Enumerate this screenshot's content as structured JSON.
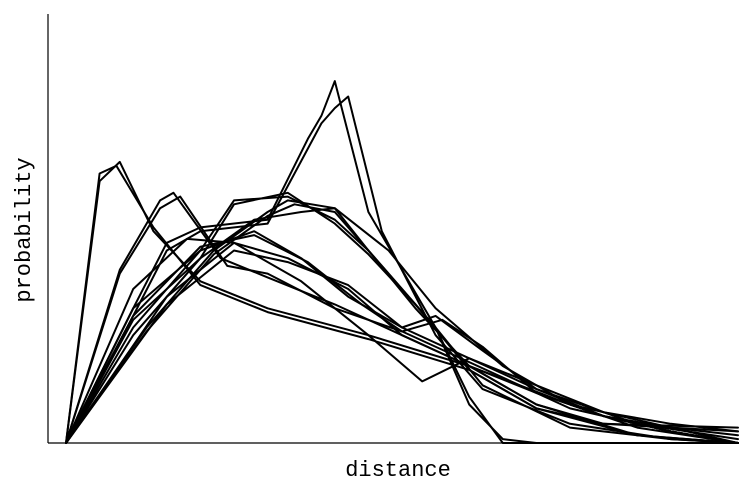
{
  "chart_data": {
    "type": "line",
    "title": "",
    "xlabel": "distance",
    "ylabel": "probability",
    "xlim": [
      0,
      1
    ],
    "ylim": [
      0,
      1
    ],
    "x_ticks_labeled": false,
    "y_ticks_labeled": false,
    "grid": false,
    "legend": "none",
    "line_color": "#000000",
    "series": [
      {
        "x": [
          0,
          0.05,
          0.08,
          0.13,
          0.2,
          0.3,
          0.45,
          0.6,
          0.7,
          0.85,
          1.0
        ],
        "values": [
          0,
          0.68,
          0.73,
          0.55,
          0.42,
          0.35,
          0.28,
          0.2,
          0.1,
          0.02,
          0
        ]
      },
      {
        "x": [
          0,
          0.05,
          0.075,
          0.13,
          0.2,
          0.3,
          0.45,
          0.6,
          0.7,
          0.85,
          1.0
        ],
        "values": [
          0,
          0.7,
          0.72,
          0.56,
          0.41,
          0.34,
          0.27,
          0.19,
          0.09,
          0.02,
          0
        ]
      },
      {
        "x": [
          0,
          0.08,
          0.14,
          0.16,
          0.23,
          0.3,
          0.4,
          0.5,
          0.6,
          0.75,
          0.9,
          1.0
        ],
        "values": [
          0,
          0.45,
          0.63,
          0.65,
          0.48,
          0.43,
          0.36,
          0.28,
          0.2,
          0.1,
          0.04,
          0
        ]
      },
      {
        "x": [
          0,
          0.08,
          0.14,
          0.17,
          0.24,
          0.3,
          0.4,
          0.5,
          0.6,
          0.75,
          0.9,
          1.0
        ],
        "values": [
          0,
          0.44,
          0.61,
          0.64,
          0.46,
          0.44,
          0.35,
          0.29,
          0.21,
          0.09,
          0.03,
          0
        ]
      },
      {
        "x": [
          0,
          0.1,
          0.15,
          0.2,
          0.3,
          0.36,
          0.38,
          0.4,
          0.45,
          0.55,
          0.62,
          0.75,
          0.9,
          1.0
        ],
        "values": [
          0,
          0.35,
          0.52,
          0.56,
          0.58,
          0.79,
          0.85,
          0.94,
          0.6,
          0.3,
          0.15,
          0.04,
          0.01,
          0
        ]
      },
      {
        "x": [
          0,
          0.1,
          0.15,
          0.2,
          0.3,
          0.38,
          0.4,
          0.42,
          0.47,
          0.55,
          0.62,
          0.75,
          0.9,
          1.0
        ],
        "values": [
          0,
          0.33,
          0.5,
          0.55,
          0.57,
          0.83,
          0.87,
          0.9,
          0.55,
          0.28,
          0.14,
          0.05,
          0.01,
          0
        ]
      },
      {
        "x": [
          0,
          0.1,
          0.2,
          0.25,
          0.33,
          0.4,
          0.45,
          0.52,
          0.6,
          0.7,
          0.8,
          1.0
        ],
        "values": [
          0,
          0.3,
          0.5,
          0.63,
          0.64,
          0.58,
          0.5,
          0.35,
          0.2,
          0.1,
          0.05,
          0.04
        ]
      },
      {
        "x": [
          0,
          0.1,
          0.2,
          0.25,
          0.33,
          0.4,
          0.45,
          0.52,
          0.6,
          0.7,
          0.8,
          1.0
        ],
        "values": [
          0,
          0.28,
          0.48,
          0.62,
          0.65,
          0.57,
          0.49,
          0.36,
          0.19,
          0.09,
          0.05,
          0.03
        ]
      },
      {
        "x": [
          0,
          0.12,
          0.22,
          0.3,
          0.33,
          0.4,
          0.45,
          0.55,
          0.6,
          0.65,
          0.7,
          0.85,
          1.0
        ],
        "values": [
          0,
          0.3,
          0.5,
          0.6,
          0.63,
          0.61,
          0.5,
          0.3,
          0.12,
          0.0,
          0,
          0,
          0
        ]
      },
      {
        "x": [
          0,
          0.12,
          0.22,
          0.3,
          0.34,
          0.4,
          0.46,
          0.55,
          0.6,
          0.65,
          0.7,
          0.85,
          1.0
        ],
        "values": [
          0,
          0.29,
          0.49,
          0.59,
          0.62,
          0.6,
          0.48,
          0.3,
          0.1,
          0.01,
          0,
          0,
          0
        ]
      },
      {
        "x": [
          0,
          0.1,
          0.2,
          0.28,
          0.35,
          0.42,
          0.5,
          0.55,
          0.62,
          0.7,
          0.8,
          0.9,
          1.0
        ],
        "values": [
          0,
          0.35,
          0.5,
          0.55,
          0.48,
          0.38,
          0.3,
          0.33,
          0.24,
          0.14,
          0.07,
          0.03,
          0
        ]
      },
      {
        "x": [
          0,
          0.1,
          0.2,
          0.28,
          0.36,
          0.44,
          0.5,
          0.56,
          0.62,
          0.7,
          0.8,
          0.9,
          1.0
        ],
        "values": [
          0,
          0.33,
          0.51,
          0.54,
          0.47,
          0.36,
          0.29,
          0.32,
          0.25,
          0.13,
          0.07,
          0.03,
          0
        ]
      },
      {
        "x": [
          0,
          0.1,
          0.2,
          0.28,
          0.35,
          0.4,
          0.48,
          0.55,
          0.65,
          0.75,
          0.85,
          1.0
        ],
        "values": [
          0,
          0.32,
          0.48,
          0.58,
          0.6,
          0.61,
          0.5,
          0.35,
          0.2,
          0.1,
          0.04,
          0
        ]
      },
      {
        "x": [
          0,
          0.15,
          0.25,
          0.33,
          0.42,
          0.5,
          0.6,
          0.7,
          0.8,
          0.9,
          1.0
        ],
        "values": [
          0,
          0.38,
          0.52,
          0.48,
          0.4,
          0.28,
          0.2,
          0.13,
          0.07,
          0.04,
          0.02
        ]
      },
      {
        "x": [
          0,
          0.15,
          0.25,
          0.33,
          0.42,
          0.5,
          0.6,
          0.7,
          0.8,
          0.9,
          1.0
        ],
        "values": [
          0,
          0.36,
          0.5,
          0.47,
          0.41,
          0.3,
          0.22,
          0.15,
          0.08,
          0.05,
          0.03
        ]
      },
      {
        "x": [
          0,
          0.1,
          0.18,
          0.25,
          0.35,
          0.45,
          0.53,
          0.6,
          0.7,
          0.85,
          1.0
        ],
        "values": [
          0,
          0.4,
          0.53,
          0.52,
          0.42,
          0.28,
          0.16,
          0.22,
          0.14,
          0.05,
          0.01
        ]
      }
    ]
  }
}
